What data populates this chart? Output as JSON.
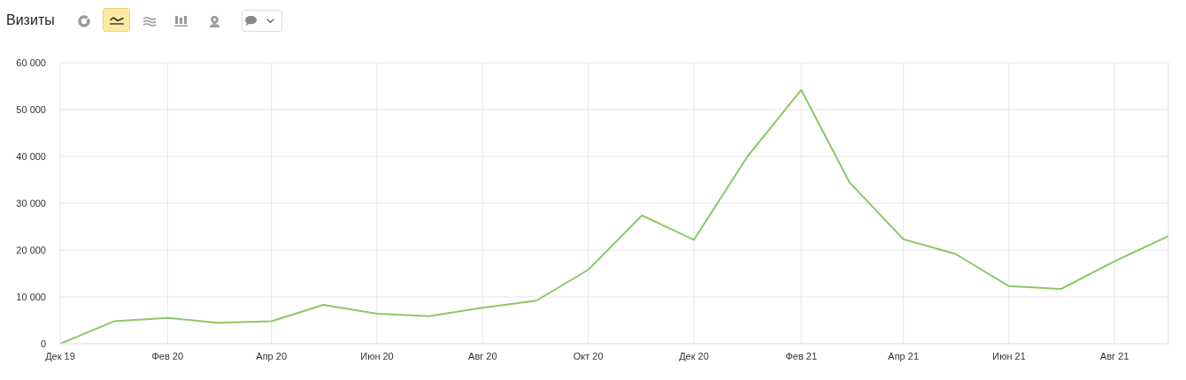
{
  "chart_data": {
    "type": "line",
    "title": "Визиты",
    "x": [
      "2019-12",
      "2020-01",
      "2020-02",
      "2020-03",
      "2020-04",
      "2020-05",
      "2020-06",
      "2020-07",
      "2020-08",
      "2020-09",
      "2020-10",
      "2020-11",
      "2020-12",
      "2021-01",
      "2021-02",
      "2021-03",
      "2021-04",
      "2021-05",
      "2021-06",
      "2021-07",
      "2021-08",
      "2021-09"
    ],
    "values": [
      0,
      4800,
      5500,
      4500,
      4800,
      8300,
      6400,
      5900,
      7700,
      9200,
      15800,
      27400,
      22200,
      40000,
      54200,
      34400,
      22300,
      19200,
      12300,
      11700,
      17600,
      23000
    ],
    "color": "#8dc863",
    "xlim": [
      "2019-12",
      "2021-09"
    ],
    "xticks": [
      {
        "value": "2019-12",
        "label": "Дек 19"
      },
      {
        "value": "2020-02",
        "label": "Фев 20"
      },
      {
        "value": "2020-04",
        "label": "Апр 20"
      },
      {
        "value": "2020-06",
        "label": "Июн 20"
      },
      {
        "value": "2020-08",
        "label": "Авг 20"
      },
      {
        "value": "2020-10",
        "label": "Окт 20"
      },
      {
        "value": "2020-12",
        "label": "Дек 20"
      },
      {
        "value": "2021-02",
        "label": "Фев 21"
      },
      {
        "value": "2021-04",
        "label": "Апр 21"
      },
      {
        "value": "2021-06",
        "label": "Июн 21"
      },
      {
        "value": "2021-08",
        "label": "Авг 21"
      }
    ],
    "ylim": [
      0,
      60000
    ],
    "yticks": [
      0,
      {
        "value": 10000,
        "label": "10 000"
      },
      {
        "value": 20000,
        "label": "20 000"
      },
      {
        "value": 30000,
        "label": "30 000"
      },
      {
        "value": 40000,
        "label": "40 000"
      },
      {
        "value": 50000,
        "label": "50 000"
      },
      {
        "value": 60000,
        "label": "60 000"
      }
    ],
    "grid": true
  }
}
